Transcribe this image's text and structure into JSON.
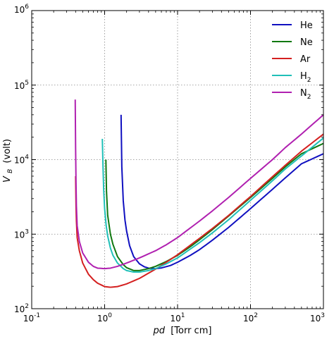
{
  "chart_data": {
    "type": "line",
    "title": "",
    "xlabel": {
      "var": "pd",
      "unit": "[Torr cm]"
    },
    "ylabel": {
      "var": "V",
      "sub": "B",
      "unit": "(volt)"
    },
    "xscale": "log",
    "yscale": "log",
    "xlim": [
      0.1,
      1000
    ],
    "ylim": [
      100,
      1000000
    ],
    "grid": true,
    "legend_position": "top-right",
    "x_ticks": [
      {
        "value": 0.1,
        "base": "10",
        "exp": "-1"
      },
      {
        "value": 1,
        "base": "10",
        "exp": "0"
      },
      {
        "value": 10,
        "base": "10",
        "exp": "1"
      },
      {
        "value": 100,
        "base": "10",
        "exp": "2"
      },
      {
        "value": 1000,
        "base": "10",
        "exp": "3"
      }
    ],
    "y_ticks": [
      {
        "value": 100,
        "base": "10",
        "exp": "2"
      },
      {
        "value": 1000,
        "base": "10",
        "exp": "3"
      },
      {
        "value": 10000,
        "base": "10",
        "exp": "4"
      },
      {
        "value": 100000,
        "base": "10",
        "exp": "5"
      },
      {
        "value": 1000000,
        "base": "10",
        "exp": "6"
      }
    ],
    "series": [
      {
        "name": "He",
        "name_sub": "",
        "color": "#1010c0",
        "x": [
          1.68,
          1.72,
          1.8,
          1.9,
          2.0,
          2.2,
          2.5,
          3.0,
          3.5,
          4.0,
          5.0,
          6.0,
          8.0,
          10,
          15,
          20,
          30,
          50,
          70,
          100,
          200,
          300,
          500,
          1000
        ],
        "y": [
          40000,
          8000,
          2800,
          1550,
          1100,
          700,
          500,
          400,
          365,
          350,
          345,
          352,
          380,
          420,
          520,
          620,
          830,
          1230,
          1630,
          2200,
          4000,
          5700,
          8800,
          12000
        ]
      },
      {
        "name": "Ne",
        "name_sub": "",
        "color": "#107810",
        "x": [
          1.04,
          1.06,
          1.1,
          1.2,
          1.3,
          1.5,
          1.8,
          2.0,
          2.5,
          3.0,
          4.0,
          5.0,
          7.0,
          10,
          15,
          20,
          30,
          50,
          100,
          200,
          300,
          500,
          1000
        ],
        "y": [
          10000,
          3800,
          1800,
          1000,
          730,
          500,
          390,
          355,
          325,
          325,
          345,
          370,
          430,
          520,
          680,
          840,
          1150,
          1750,
          3100,
          5600,
          8000,
          12000,
          16500
        ]
      },
      {
        "name": "Ar",
        "name_sub": "",
        "color": "#d42020",
        "x": [
          0.4,
          0.405,
          0.41,
          0.42,
          0.45,
          0.5,
          0.6,
          0.7,
          0.8,
          1.0,
          1.2,
          1.5,
          2.0,
          3.0,
          5.0,
          7.0,
          10,
          20,
          30,
          50,
          100,
          200,
          300,
          500,
          1000
        ],
        "y": [
          6000,
          2400,
          1500,
          900,
          600,
          410,
          290,
          245,
          220,
          198,
          194,
          198,
          215,
          255,
          340,
          420,
          530,
          880,
          1190,
          1780,
          3200,
          5900,
          8400,
          13000,
          22000
        ]
      },
      {
        "name": "H",
        "name_sub": "2",
        "color": "#20c0b8",
        "x": [
          0.93,
          0.95,
          0.97,
          1.0,
          1.05,
          1.1,
          1.2,
          1.3,
          1.5,
          1.8,
          2.0,
          2.5,
          3.0,
          4.0,
          5.0,
          7.0,
          10,
          20,
          30,
          50,
          100,
          200,
          300,
          500,
          1000
        ],
        "y": [
          19000,
          8000,
          4000,
          2200,
          1300,
          950,
          650,
          520,
          410,
          345,
          325,
          310,
          310,
          325,
          345,
          400,
          480,
          770,
          1040,
          1560,
          2850,
          5200,
          7500,
          11200,
          19500
        ]
      },
      {
        "name": "N",
        "name_sub": "2",
        "color": "#b020b0",
        "x": [
          0.395,
          0.4,
          0.405,
          0.41,
          0.42,
          0.45,
          0.5,
          0.6,
          0.7,
          0.8,
          1.0,
          1.2,
          1.5,
          2.0,
          3.0,
          5.0,
          7.0,
          10,
          20,
          30,
          50,
          100,
          200,
          300,
          500,
          1000
        ],
        "y": [
          64000,
          14000,
          5000,
          2400,
          1300,
          800,
          560,
          420,
          370,
          350,
          345,
          350,
          370,
          410,
          480,
          600,
          720,
          900,
          1500,
          2050,
          3100,
          5600,
          10000,
          14500,
          22000,
          40000
        ]
      }
    ]
  }
}
